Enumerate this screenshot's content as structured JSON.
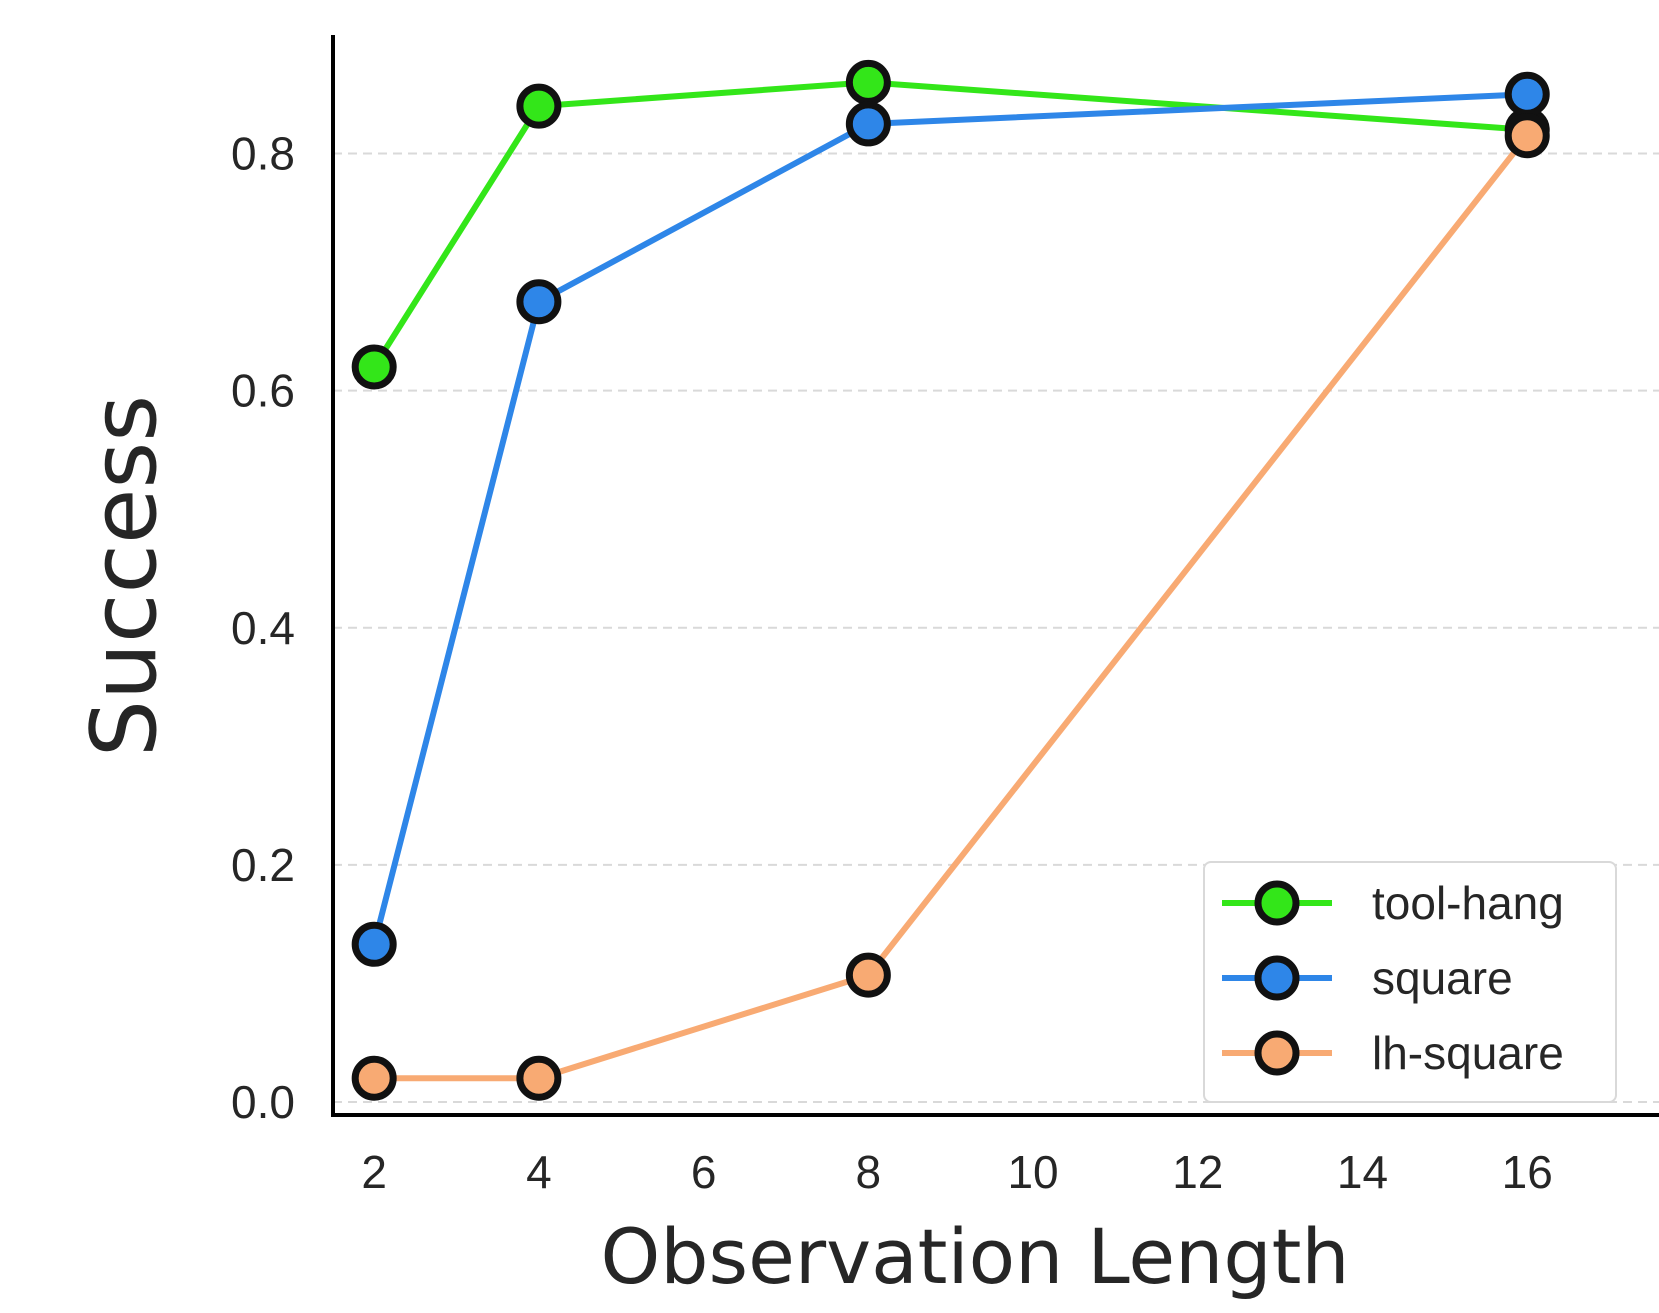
{
  "chart_data": {
    "type": "line",
    "title": "",
    "xlabel": "Observation Length",
    "ylabel": "Success",
    "xlim": [
      1.5,
      17.6
    ],
    "ylim": [
      -0.011,
      0.9
    ],
    "xticks": [
      2,
      4,
      6,
      8,
      10,
      12,
      14,
      16
    ],
    "xtick_labels": [
      "2",
      "4",
      "6",
      "8",
      "10",
      "12",
      "14",
      "16"
    ],
    "yticks": [
      0.0,
      0.2,
      0.4,
      0.6,
      0.8
    ],
    "ytick_labels": [
      "0.0",
      "0.2",
      "0.4",
      "0.6",
      "0.8"
    ],
    "grid": "horizontal dashed",
    "legend_position": "lower-right",
    "series": [
      {
        "name": "tool-hang",
        "color": "#33e619",
        "x": [
          2,
          4,
          8,
          16
        ],
        "values": [
          0.62,
          0.84,
          0.86,
          0.82
        ]
      },
      {
        "name": "square",
        "color": "#2e86e8",
        "x": [
          2,
          4,
          8,
          16
        ],
        "values": [
          0.133,
          0.675,
          0.825,
          0.85
        ]
      },
      {
        "name": "lh-square",
        "color": "#f8aa73",
        "x": [
          2,
          4,
          8,
          16
        ],
        "values": [
          0.02,
          0.02,
          0.107,
          0.815
        ]
      }
    ]
  }
}
